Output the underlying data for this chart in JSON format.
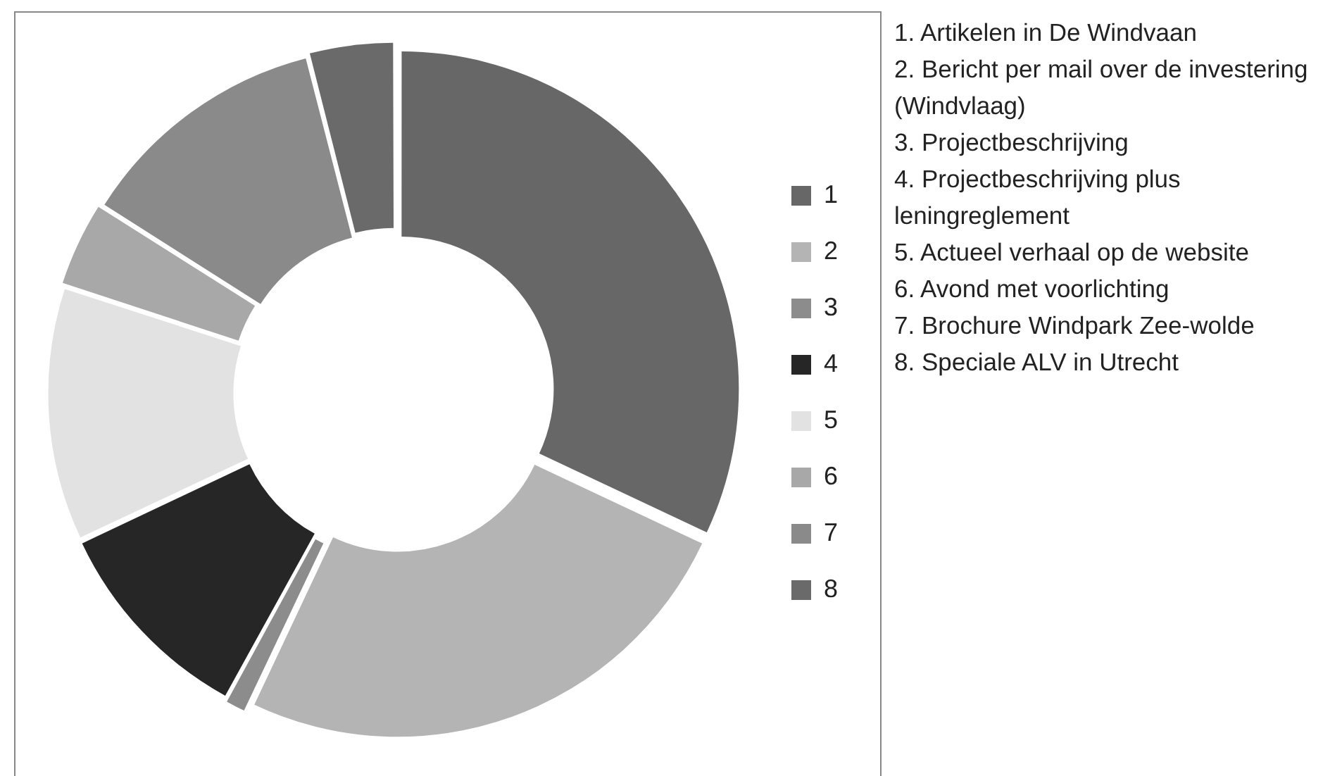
{
  "chart_data": {
    "type": "donut",
    "categories": [
      "1",
      "2",
      "3",
      "4",
      "5",
      "6",
      "7",
      "8"
    ],
    "values": [
      32,
      25,
      1,
      10,
      12,
      4,
      12,
      4
    ],
    "colors": [
      "#676767",
      "#b4b4b4",
      "#8c8c8c",
      "#262626",
      "#e2e2e2",
      "#a8a8a8",
      "#8a8a8a",
      "#6a6a6a"
    ],
    "legend": "right",
    "annotations": [
      "1. Artikelen in De Windvaan",
      "2. Bericht per mail over de investering (Windvlaag)",
      "3. Projectbeschrijving",
      "4. Projectbeschrijving plus leningreglement",
      "5. Actueel verhaal op de website",
      "6. Avond met voorlichting",
      "7. Brochure Windpark Zee-wolde",
      "8. Speciale ALV in Utrecht"
    ]
  }
}
